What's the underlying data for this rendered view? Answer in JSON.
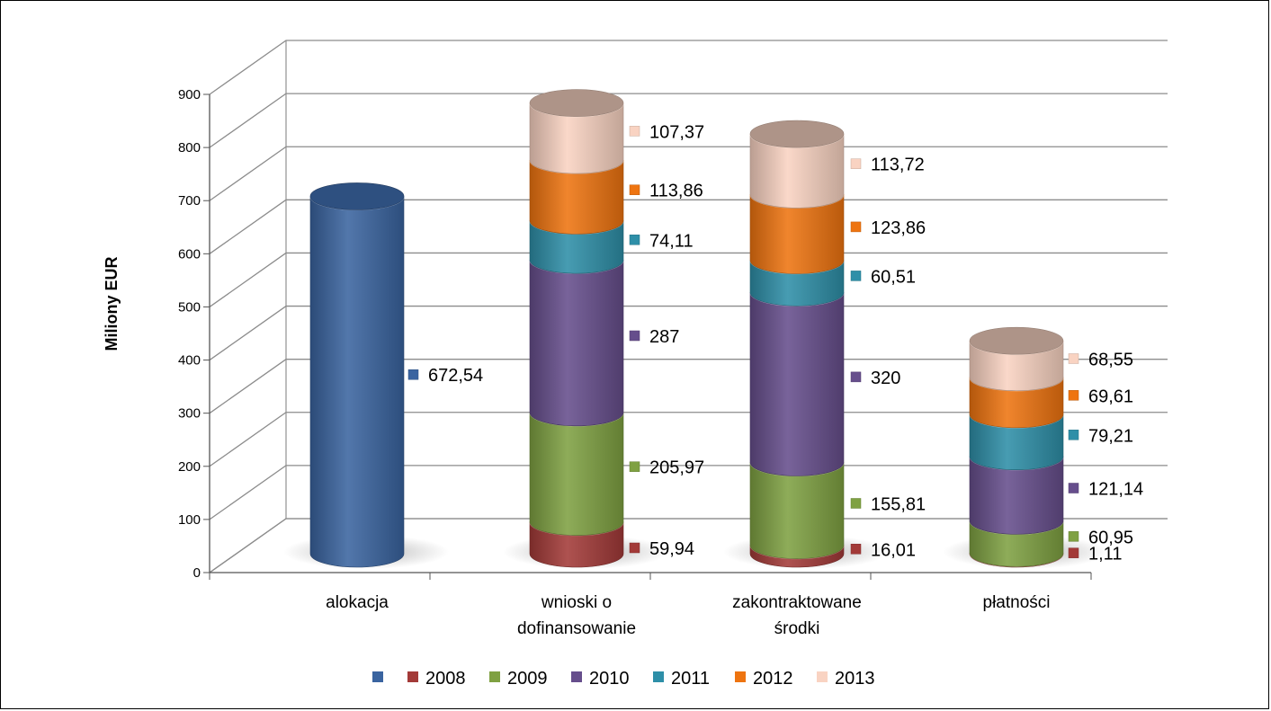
{
  "chart_data": {
    "type": "bar",
    "stacked": true,
    "style": "3d-cylinder",
    "title": "",
    "ylabel": "Miliony EUR",
    "xlabel": "",
    "ylim": [
      0,
      900
    ],
    "yticks": [
      0,
      100,
      200,
      300,
      400,
      500,
      600,
      700,
      800,
      900
    ],
    "grid": true,
    "legend_position": "bottom",
    "categories": [
      {
        "lines": [
          "alokacja"
        ]
      },
      {
        "lines": [
          "wnioski o",
          "dofinansowanie"
        ]
      },
      {
        "lines": [
          "zakontraktowane",
          "środki"
        ]
      },
      {
        "lines": [
          "płatności"
        ]
      }
    ],
    "series": [
      {
        "name": "",
        "color": "#3A64A0",
        "values": [
          672.54,
          null,
          null,
          null
        ],
        "labels": [
          "672,54",
          "",
          "",
          ""
        ]
      },
      {
        "name": "2008",
        "color": "#A33A38",
        "values": [
          null,
          59.94,
          16.01,
          1.11
        ],
        "labels": [
          "",
          "59,94",
          "16,01",
          "1,11"
        ]
      },
      {
        "name": "2009",
        "color": "#7FA142",
        "values": [
          null,
          205.97,
          155.81,
          60.95
        ],
        "labels": [
          "",
          "205,97",
          "155,81",
          "60,95"
        ]
      },
      {
        "name": "2010",
        "color": "#664E8C",
        "values": [
          null,
          287,
          320,
          121.14
        ],
        "labels": [
          "",
          "287",
          "320",
          "121,14"
        ]
      },
      {
        "name": "2011",
        "color": "#2E8FA8",
        "values": [
          null,
          74.11,
          60.51,
          79.21
        ],
        "labels": [
          "",
          "74,11",
          "60,51",
          "79,21"
        ]
      },
      {
        "name": "2012",
        "color": "#EE7410",
        "values": [
          null,
          113.86,
          123.86,
          69.61
        ],
        "labels": [
          "",
          "113,86",
          "123,86",
          "69,61"
        ]
      },
      {
        "name": "2013",
        "color": "#F9D3C2",
        "values": [
          null,
          107.37,
          113.72,
          68.55
        ],
        "labels": [
          "",
          "107,37",
          "113,72",
          "68,55"
        ]
      }
    ]
  }
}
